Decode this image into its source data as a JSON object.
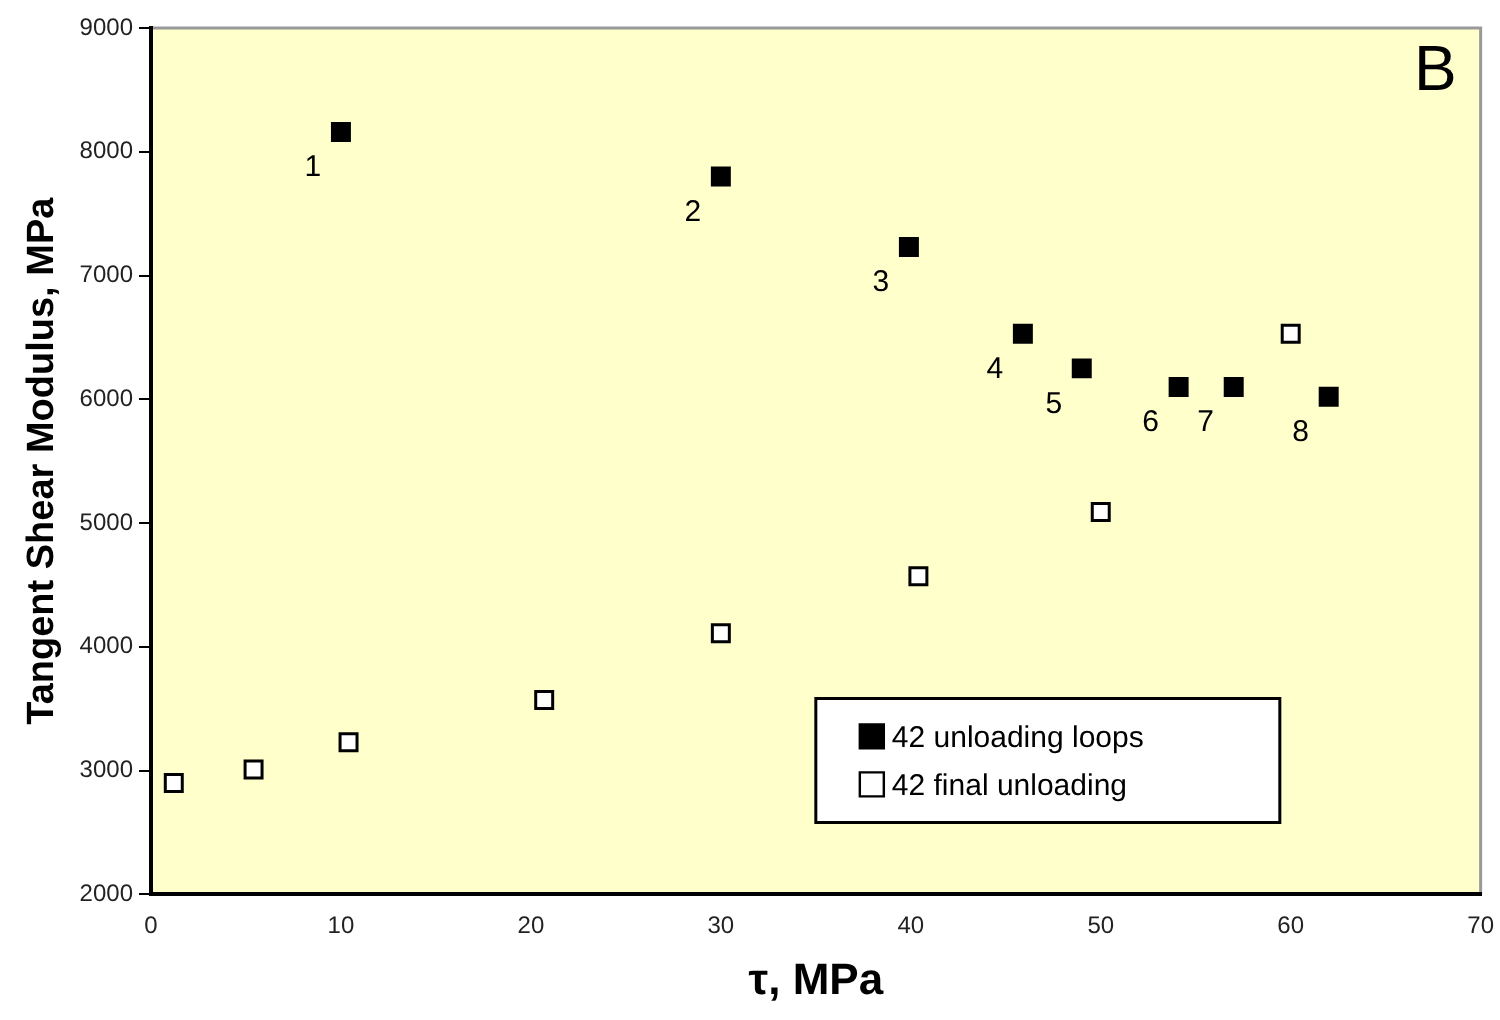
{
  "chart_data": {
    "type": "scatter",
    "xlabel": "τ, MPa",
    "ylabel": "Tangent Shear Modulus, MPa",
    "xlim": [
      0,
      70
    ],
    "xticks": [
      0,
      10,
      20,
      30,
      40,
      50,
      60,
      70
    ],
    "ylim": [
      2000,
      9000
    ],
    "yticks": [
      2000,
      3000,
      4000,
      5000,
      6000,
      7000,
      8000,
      9000
    ],
    "grid": false,
    "legend": "bottom right",
    "marker": "square",
    "series": [
      {
        "name": "42 unloading loops",
        "color": "#000000",
        "x": [
          10,
          30,
          39.9,
          45.9,
          49,
          54.1,
          57,
          62
        ],
        "values": [
          8160,
          7800,
          7230,
          6530,
          6250,
          6100,
          6100,
          6020
        ]
      },
      {
        "name": "42 final unloading",
        "color": "#ffffff",
        "x": [
          1.2,
          5.4,
          10.4,
          20.7,
          30,
          40.4,
          50,
          60
        ],
        "values": [
          2900,
          3010,
          3230,
          3570,
          4110,
          4570,
          5090,
          6530
        ]
      }
    ],
    "annotations": [
      "B",
      {
        "text": "1",
        "x": 10,
        "y": 8160
      },
      {
        "text": "2",
        "x": 30,
        "y": 7800
      },
      {
        "text": "3",
        "x": 39.9,
        "y": 7230
      },
      {
        "text": "4",
        "x": 45.9,
        "y": 6530
      },
      {
        "text": "5",
        "x": 49,
        "y": 6250
      },
      {
        "text": "6",
        "x": 54.1,
        "y": 6100
      },
      {
        "text": "7",
        "x": 57,
        "y": 6100
      },
      {
        "text": "8",
        "x": 62,
        "y": 6020
      }
    ]
  }
}
